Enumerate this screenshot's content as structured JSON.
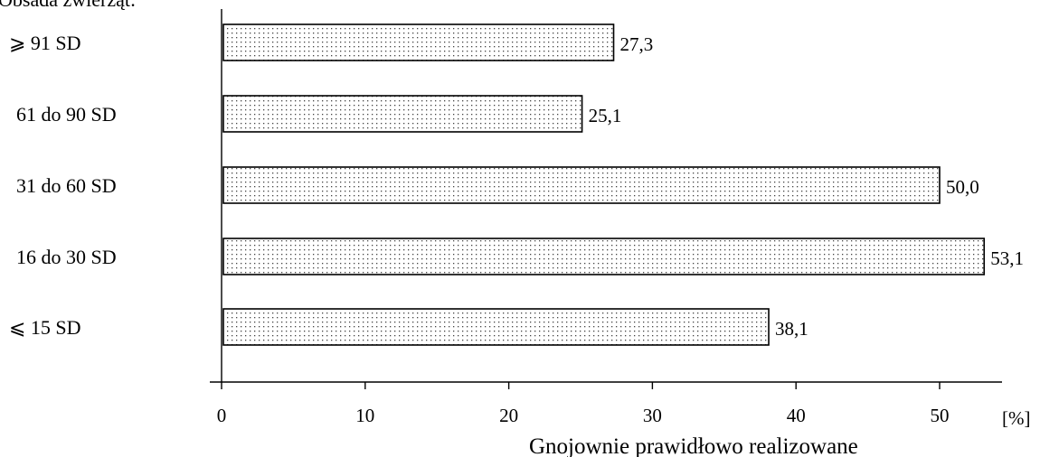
{
  "chart_data": {
    "type": "bar",
    "orientation": "horizontal",
    "title": "",
    "ylabel": "Obsada zwierząt:",
    "xlabel": "Gnojownie prawidłowo realizowane",
    "x_unit": "[%]",
    "categories": [
      "⩾ 91 SD",
      "61 do 90 SD",
      "31 do 60 SD",
      "16 do 30 SD",
      "⩽ 15 SD"
    ],
    "values": [
      27.3,
      25.1,
      50.0,
      53.1,
      38.1
    ],
    "value_labels": [
      "27,3",
      "25,1",
      "50,0",
      "53,1",
      "38,1"
    ],
    "xlim": [
      0,
      54
    ],
    "xticks": [
      0,
      10,
      20,
      30,
      40,
      50
    ],
    "grid": false,
    "bar_pattern": "dotted"
  }
}
